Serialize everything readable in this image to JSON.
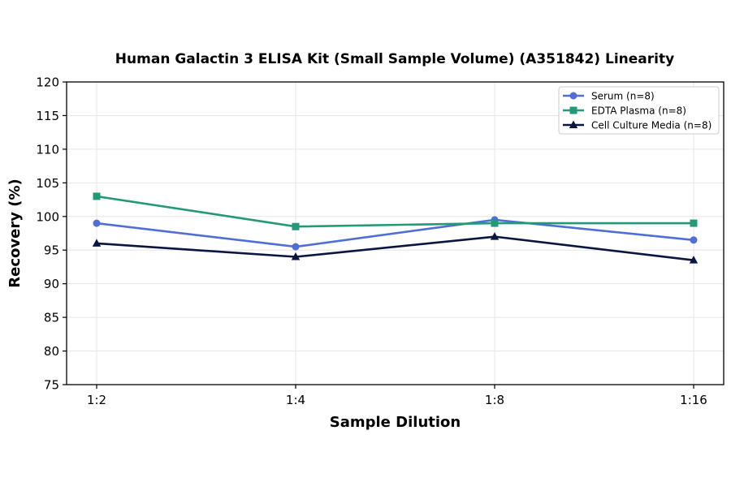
{
  "chart_data": {
    "type": "line",
    "title": "Human Galactin 3 ELISA Kit (Small Sample Volume) (A351842) Linearity",
    "xlabel": "Sample Dilution",
    "ylabel": "Recovery (%)",
    "categories": [
      "1:2",
      "1:4",
      "1:8",
      "1:16"
    ],
    "ylim": [
      75,
      120
    ],
    "yticks": [
      75,
      80,
      85,
      90,
      95,
      100,
      105,
      110,
      115,
      120
    ],
    "grid": true,
    "legend_position": "top-right",
    "series": [
      {
        "name": "Serum (n=8)",
        "values": [
          99.0,
          95.5,
          99.5,
          96.5
        ],
        "color": "#4f6fd6",
        "marker": "circle"
      },
      {
        "name": "EDTA Plasma (n=8)",
        "values": [
          103.0,
          98.5,
          99.0,
          99.0
        ],
        "color": "#23997a",
        "marker": "square"
      },
      {
        "name": "Cell Culture Media (n=8)",
        "values": [
          96.0,
          94.0,
          97.0,
          93.5
        ],
        "color": "#0b1640",
        "marker": "triangle"
      }
    ]
  }
}
